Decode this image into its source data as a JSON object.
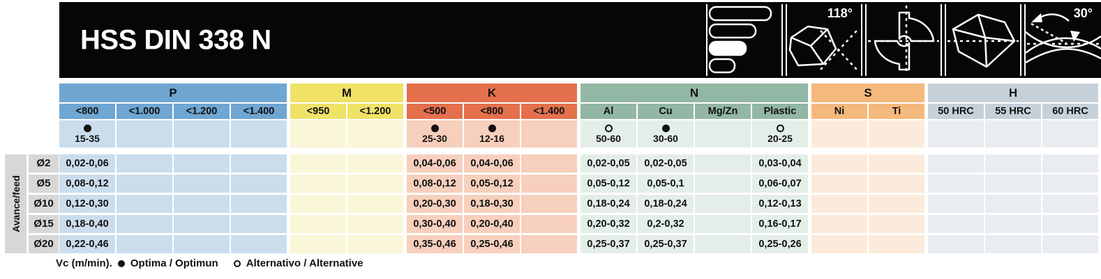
{
  "header": {
    "title": "HSS DIN 338 N",
    "icon_panels": [
      {
        "name": "size-range-bars-icon",
        "label": ""
      },
      {
        "name": "point-angle-icon",
        "label": "118°"
      },
      {
        "name": "flute-cross-section-icon",
        "label": ""
      },
      {
        "name": "point-geometry-icon",
        "label": ""
      },
      {
        "name": "helix-angle-icon",
        "label": "30°"
      }
    ]
  },
  "table": {
    "axis_label": "Avance/feed",
    "groups": [
      {
        "id": "P",
        "label": "P",
        "header_color": "#6FA6D2",
        "cell_color": "#CBDDED",
        "columns": [
          "<800",
          "<1.000",
          "<1.200",
          "<1.400"
        ],
        "vc": [
          {
            "symbol": "optima",
            "value": "15-35"
          },
          null,
          null,
          null
        ]
      },
      {
        "id": "M",
        "label": "M",
        "header_color": "#F0E266",
        "cell_color": "#FAF6D8",
        "columns": [
          "<950",
          "<1.200"
        ],
        "vc": [
          null,
          null
        ]
      },
      {
        "id": "K",
        "label": "K",
        "header_color": "#E4704C",
        "cell_color": "#F7CFBD",
        "columns": [
          "<500",
          "<800",
          "<1.400"
        ],
        "vc": [
          {
            "symbol": "optima",
            "value": "25-30"
          },
          {
            "symbol": "optima",
            "value": "12-16"
          },
          null
        ]
      },
      {
        "id": "N",
        "label": "N",
        "header_color": "#92B7A4",
        "cell_color": "#E4EEE8",
        "columns": [
          "Al",
          "Cu",
          "Mg/Zn",
          "Plastic"
        ],
        "vc": [
          {
            "symbol": "alternative",
            "value": "50-60"
          },
          {
            "symbol": "optima",
            "value": "30-60"
          },
          null,
          {
            "symbol": "alternative",
            "value": "20-25"
          }
        ]
      },
      {
        "id": "S",
        "label": "S",
        "header_color": "#F4BA7D",
        "cell_color": "#FCEBDA",
        "columns": [
          "Ni",
          "Ti"
        ],
        "vc": [
          null,
          null
        ]
      },
      {
        "id": "H",
        "label": "H",
        "header_color": "#C6D0D9",
        "cell_color": "#E9EDF1",
        "columns": [
          "50 HRC",
          "55 HRC",
          "60 HRC"
        ],
        "vc": [
          null,
          null,
          null
        ]
      }
    ],
    "rows": [
      {
        "diameter": "Ø2",
        "cells": {
          "P": [
            "0,02-0,06",
            "",
            "",
            ""
          ],
          "M": [
            "",
            ""
          ],
          "K": [
            "0,04-0,06",
            "0,04-0,06",
            ""
          ],
          "N": [
            "0,02-0,05",
            "0,02-0,05",
            "",
            "0,03-0,04"
          ],
          "S": [
            "",
            ""
          ],
          "H": [
            "",
            "",
            ""
          ]
        }
      },
      {
        "diameter": "Ø5",
        "cells": {
          "P": [
            "0,08-0,12",
            "",
            "",
            ""
          ],
          "M": [
            "",
            ""
          ],
          "K": [
            "0,08-0,12",
            "0,05-0,12",
            ""
          ],
          "N": [
            "0,05-0,12",
            "0,05-0,1",
            "",
            "0,06-0,07"
          ],
          "S": [
            "",
            ""
          ],
          "H": [
            "",
            "",
            ""
          ]
        }
      },
      {
        "diameter": "Ø10",
        "cells": {
          "P": [
            "0,12-0,30",
            "",
            "",
            ""
          ],
          "M": [
            "",
            ""
          ],
          "K": [
            "0,20-0,30",
            "0,18-0,30",
            ""
          ],
          "N": [
            "0,18-0,24",
            "0,18-0,24",
            "",
            "0,12-0,13"
          ],
          "S": [
            "",
            ""
          ],
          "H": [
            "",
            "",
            ""
          ]
        }
      },
      {
        "diameter": "Ø15",
        "cells": {
          "P": [
            "0,18-0,40",
            "",
            "",
            ""
          ],
          "M": [
            "",
            ""
          ],
          "K": [
            "0,30-0,40",
            "0,20-0,40",
            ""
          ],
          "N": [
            "0,20-0,32",
            "0,2-0,32",
            "",
            "0,16-0,17"
          ],
          "S": [
            "",
            ""
          ],
          "H": [
            "",
            "",
            ""
          ]
        }
      },
      {
        "diameter": "Ø20",
        "cells": {
          "P": [
            "0,22-0,46",
            "",
            "",
            ""
          ],
          "M": [
            "",
            ""
          ],
          "K": [
            "0,35-0,46",
            "0,25-0,46",
            ""
          ],
          "N": [
            "0,25-0,37",
            "0,25-0,37",
            "",
            "0,25-0,26"
          ],
          "S": [
            "",
            ""
          ],
          "H": [
            "",
            "",
            ""
          ]
        }
      }
    ]
  },
  "legend": {
    "vc_label": "Vc (m/min).",
    "optima_label": "Optima / Optimun",
    "alternative_label": "Alternativo / Alternative"
  }
}
